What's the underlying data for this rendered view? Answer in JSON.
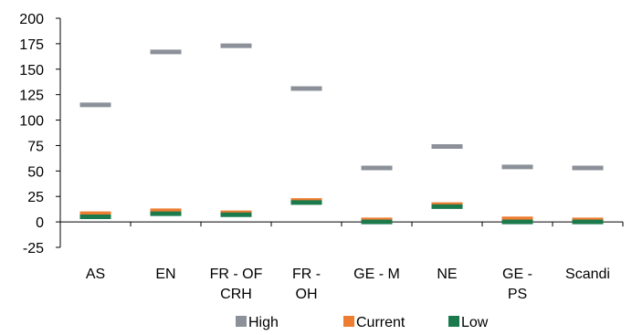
{
  "chart_data": {
    "type": "scatter",
    "title": "",
    "xlabel": "",
    "ylabel": "",
    "ylim": [
      -25,
      200
    ],
    "yticks": [
      -25,
      0,
      25,
      50,
      75,
      100,
      125,
      150,
      175,
      200
    ],
    "grid": false,
    "legend_position": "bottom",
    "marker": "horizontal-dash",
    "categories": [
      [
        "AS"
      ],
      [
        "EN"
      ],
      [
        "FR - OF",
        "CRH"
      ],
      [
        "FR -",
        "OH"
      ],
      [
        "GE - M"
      ],
      [
        "NE"
      ],
      [
        "GE -",
        "PS"
      ],
      [
        "Scandi"
      ]
    ],
    "series": [
      {
        "name": "High",
        "color": "#8c9199",
        "values": [
          115,
          167,
          173,
          131,
          53,
          74,
          54,
          53
        ]
      },
      {
        "name": "Current",
        "color": "#ed7d31",
        "values": [
          8,
          11,
          9,
          21,
          2,
          17,
          3,
          2
        ]
      },
      {
        "name": "Low",
        "color": "#1a7a4c",
        "values": [
          5,
          8,
          7,
          19,
          0,
          15,
          0,
          0
        ]
      }
    ]
  }
}
